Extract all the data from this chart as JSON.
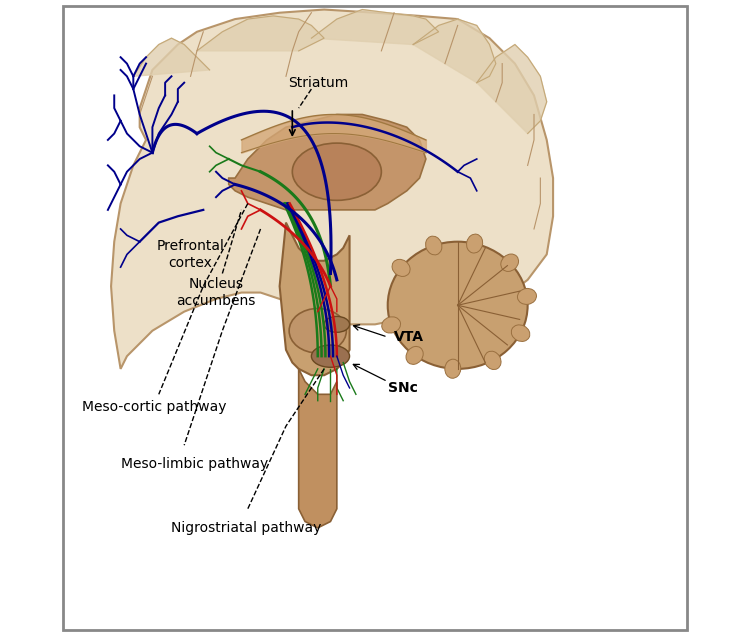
{
  "background_color": "#ffffff",
  "brain_fill": "#ede0c8",
  "brain_edge": "#b8956a",
  "gyrus_fill": "#e0cfaf",
  "gyrus_edge": "#c4a878",
  "inner_fill": "#c4956a",
  "inner_edge": "#9a7040",
  "thalamus_fill": "#b8825a",
  "brainstem_fill": "#c8a070",
  "cerebellum_fill": "#c8a070",
  "col_blue": "#00008B",
  "col_green": "#1a7a1a",
  "col_red": "#CC1111",
  "labels": {
    "prefrontal_cortex": "Prefrontal\ncortex",
    "striatum": "Striatum",
    "nucleus_accumbens": "Nucleus\naccumbens",
    "vta": "VTA",
    "snc": "SNc",
    "mesocortic": "Meso-cortic pathway",
    "mesolimbic": "Meso-limbic pathway",
    "nigrostriatal": "Nigrostriatal pathway"
  }
}
